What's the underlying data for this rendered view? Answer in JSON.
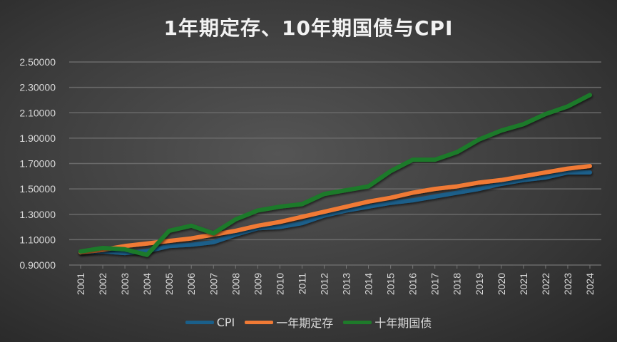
{
  "chart_data": {
    "type": "line",
    "title": "1年期定存、10年期国债与CPI",
    "categories": [
      "2001",
      "2002",
      "2003",
      "2004",
      "2005",
      "2006",
      "2007",
      "2008",
      "2009",
      "2010",
      "2011",
      "2012",
      "2013",
      "2014",
      "2015",
      "2016",
      "2017",
      "2018",
      "2019",
      "2020",
      "2021",
      "2022",
      "2023",
      "2024"
    ],
    "ylim": [
      0.9,
      2.5
    ],
    "yticks": [
      "0.90000",
      "1.10000",
      "1.30000",
      "1.50000",
      "1.70000",
      "1.90000",
      "2.10000",
      "2.30000",
      "2.50000"
    ],
    "grid": true,
    "legend": "bottom",
    "series": [
      {
        "name": "CPI",
        "color": "#1a5f8a",
        "values": [
          1.0,
          1.007,
          0.995,
          1.01,
          1.05,
          1.06,
          1.08,
          1.14,
          1.19,
          1.2,
          1.23,
          1.29,
          1.33,
          1.36,
          1.39,
          1.41,
          1.44,
          1.47,
          1.5,
          1.54,
          1.57,
          1.59,
          1.63,
          1.63
        ]
      },
      {
        "name": "一年期定存",
        "color": "#f07a35",
        "values": [
          1.0,
          1.02,
          1.05,
          1.07,
          1.09,
          1.11,
          1.14,
          1.17,
          1.21,
          1.24,
          1.28,
          1.32,
          1.36,
          1.4,
          1.43,
          1.47,
          1.5,
          1.52,
          1.55,
          1.57,
          1.6,
          1.63,
          1.66,
          1.68
        ]
      },
      {
        "name": "十年期国债",
        "color": "#1e7a2a",
        "values": [
          1.007,
          1.035,
          1.024,
          0.98,
          1.17,
          1.21,
          1.15,
          1.26,
          1.33,
          1.36,
          1.38,
          1.46,
          1.49,
          1.52,
          1.64,
          1.73,
          1.73,
          1.79,
          1.89,
          1.96,
          2.01,
          2.09,
          2.15,
          2.24
        ]
      }
    ]
  }
}
